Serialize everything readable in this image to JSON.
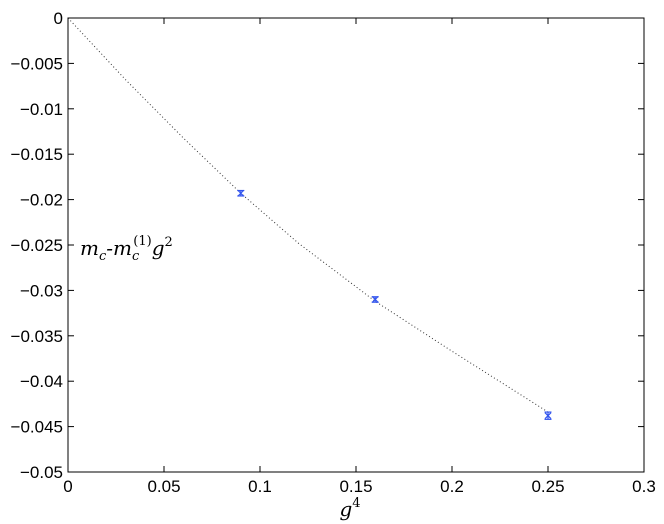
{
  "chart_data": {
    "type": "scatter",
    "title": "",
    "xlabel": "g⁴",
    "ylabel": "",
    "xlim": [
      0,
      0.3
    ],
    "ylim": [
      -0.05,
      0
    ],
    "grid": false,
    "x_ticks": [
      0,
      0.05,
      0.1,
      0.15,
      0.2,
      0.25,
      0.3
    ],
    "x_tick_labels": [
      "0",
      "0.05",
      "0.1",
      "0.15",
      "0.2",
      "0.25",
      "0.3"
    ],
    "y_ticks": [
      0,
      -0.005,
      -0.01,
      -0.015,
      -0.02,
      -0.025,
      -0.03,
      -0.035,
      -0.04,
      -0.045,
      -0.05
    ],
    "y_tick_labels": [
      "0",
      "−0.005",
      "−0.01",
      "−0.015",
      "−0.02",
      "−0.025",
      "−0.03",
      "−0.035",
      "−0.04",
      "−0.045",
      "−0.05"
    ],
    "annotation": "mc-mc(1)g²",
    "series": [
      {
        "kind": "points-with-errorbars",
        "color": "#3355ee",
        "x": [
          0.09,
          0.16,
          0.25
        ],
        "y": [
          -0.0193,
          -0.031,
          -0.0438
        ],
        "yerr": [
          0.0003,
          0.0003,
          0.0004
        ]
      },
      {
        "kind": "dotted-fit-curve",
        "color": "#333333",
        "x": [
          0,
          0.03,
          0.06,
          0.09,
          0.12,
          0.16,
          0.2,
          0.25
        ],
        "y": [
          0,
          -0.0068,
          -0.0132,
          -0.0193,
          -0.0248,
          -0.0312,
          -0.0367,
          -0.0434
        ]
      }
    ]
  }
}
